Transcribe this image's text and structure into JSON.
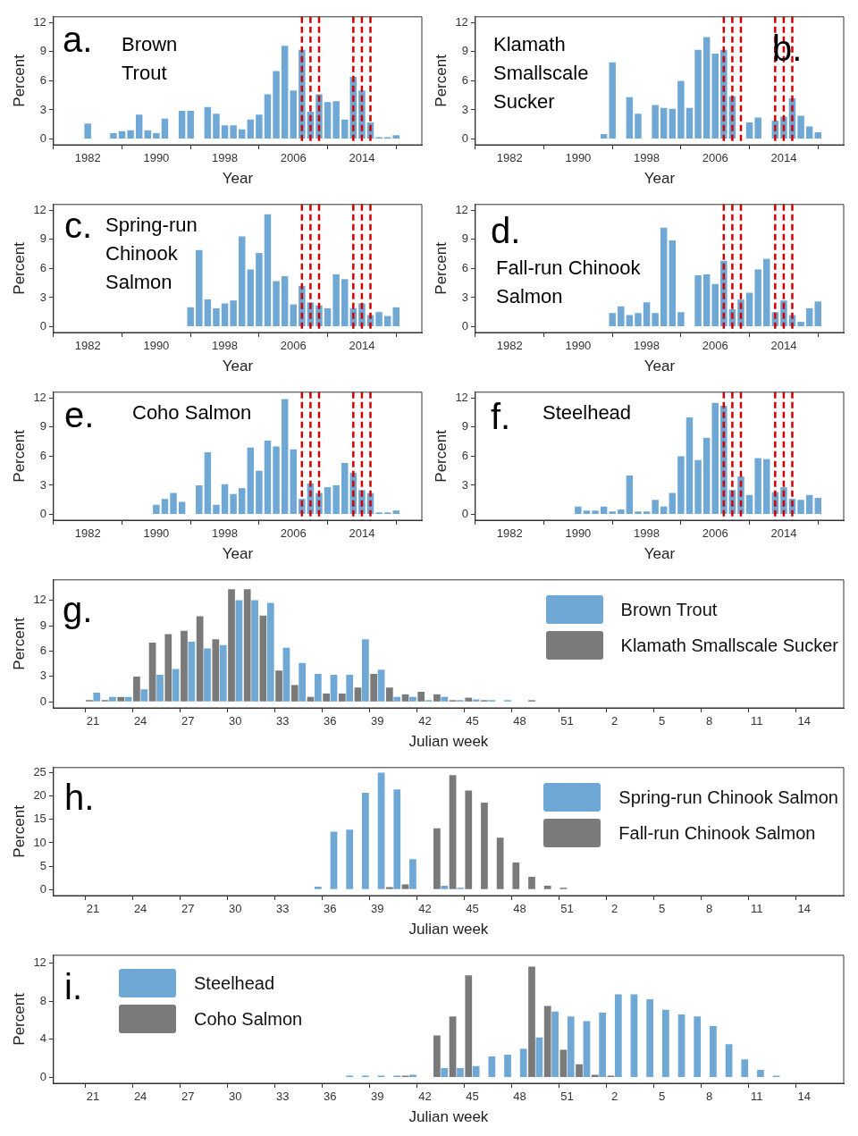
{
  "chart_data": [
    {
      "type": "bar",
      "title": "a.",
      "subtitle": "Brown Trout",
      "xlabel": "Year",
      "ylabel": "Percent",
      "color": "#6fa8d4",
      "x": [
        1982,
        1985,
        1986,
        1987,
        1988,
        1989,
        1990,
        1991,
        1993,
        1994,
        1996,
        1997,
        1998,
        1999,
        2000,
        2001,
        2002,
        2003,
        2004,
        2005,
        2006,
        2007,
        2008,
        2009,
        2010,
        2011,
        2012,
        2013,
        2014,
        2015,
        2016,
        2017,
        2018
      ],
      "values": [
        1.6,
        0.6,
        0.8,
        0.9,
        2.5,
        0.9,
        0.6,
        2.1,
        2.9,
        2.9,
        3.3,
        2.6,
        1.4,
        1.4,
        1.0,
        2.0,
        2.5,
        4.6,
        7.0,
        9.6,
        5.0,
        9.2,
        2.8,
        4.6,
        3.8,
        3.9,
        2.0,
        6.4,
        5.0,
        1.7,
        0.1,
        0.1,
        0.4
      ],
      "xlim": [
        1978,
        2021
      ],
      "xticks": [
        1982,
        1990,
        1998,
        2006,
        2014
      ],
      "ylim": [
        -0.6,
        12.6
      ],
      "yticks": [
        0,
        3,
        6,
        9,
        12
      ],
      "ref_lines": [
        {
          "axis": "x",
          "value": 2007,
          "color": "#d00000",
          "line_style": "dashed"
        },
        {
          "axis": "x",
          "value": 2008,
          "color": "#d00000",
          "line_style": "dashed"
        },
        {
          "axis": "x",
          "value": 2009,
          "color": "#d00000",
          "line_style": "dashed"
        },
        {
          "axis": "x",
          "value": 2013,
          "color": "#d00000",
          "line_style": "dashed"
        },
        {
          "axis": "x",
          "value": 2014,
          "color": "#d00000",
          "line_style": "dashed"
        },
        {
          "axis": "x",
          "value": 2015,
          "color": "#d00000",
          "line_style": "dashed"
        }
      ]
    },
    {
      "type": "bar",
      "title": "b.",
      "subtitle": "Klamath Smallscale Sucker",
      "xlabel": "Year",
      "ylabel": "Percent",
      "color": "#6fa8d4",
      "x": [
        1993,
        1994,
        1996,
        1997,
        1999,
        2000,
        2001,
        2002,
        2003,
        2004,
        2005,
        2006,
        2007,
        2008,
        2010,
        2011,
        2013,
        2014,
        2015,
        2016,
        2017,
        2018
      ],
      "values": [
        0.5,
        7.9,
        4.3,
        2.6,
        3.5,
        3.2,
        3.1,
        6.0,
        3.2,
        9.2,
        10.5,
        8.8,
        9.2,
        4.4,
        1.7,
        2.2,
        1.9,
        2.3,
        4.2,
        2.4,
        1.3,
        0.7
      ],
      "xlim": [
        1978,
        2021
      ],
      "xticks": [
        1982,
        1990,
        1998,
        2006,
        2014
      ],
      "ylim": [
        -0.6,
        12.6
      ],
      "yticks": [
        0,
        3,
        6,
        9,
        12
      ],
      "ref_lines": [
        {
          "axis": "x",
          "value": 2007,
          "color": "#d00000",
          "line_style": "dashed"
        },
        {
          "axis": "x",
          "value": 2008,
          "color": "#d00000",
          "line_style": "dashed"
        },
        {
          "axis": "x",
          "value": 2009,
          "color": "#d00000",
          "line_style": "dashed"
        },
        {
          "axis": "x",
          "value": 2013,
          "color": "#d00000",
          "line_style": "dashed"
        },
        {
          "axis": "x",
          "value": 2014,
          "color": "#d00000",
          "line_style": "dashed"
        },
        {
          "axis": "x",
          "value": 2015,
          "color": "#d00000",
          "line_style": "dashed"
        }
      ]
    },
    {
      "type": "bar",
      "title": "c.",
      "subtitle": "Spring-run Chinook Salmon",
      "xlabel": "Year",
      "ylabel": "Percent",
      "color": "#6fa8d4",
      "x": [
        1994,
        1995,
        1996,
        1997,
        1998,
        1999,
        2000,
        2001,
        2002,
        2003,
        2004,
        2005,
        2006,
        2007,
        2008,
        2009,
        2010,
        2011,
        2012,
        2013,
        2014,
        2015,
        2016,
        2017,
        2018
      ],
      "values": [
        2.0,
        7.9,
        2.8,
        1.9,
        2.4,
        2.7,
        9.3,
        5.9,
        7.6,
        11.6,
        4.7,
        5.2,
        2.3,
        4.2,
        2.5,
        2.2,
        1.9,
        5.4,
        4.9,
        1.9,
        2.4,
        1.2,
        1.5,
        1.1,
        2.0
      ],
      "xlim": [
        1978,
        2021
      ],
      "xticks": [
        1982,
        1990,
        1998,
        2006,
        2014
      ],
      "ylim": [
        -0.6,
        12.6
      ],
      "yticks": [
        0,
        3,
        6,
        9,
        12
      ],
      "ref_lines": [
        {
          "axis": "x",
          "value": 2007,
          "color": "#d00000",
          "line_style": "dashed"
        },
        {
          "axis": "x",
          "value": 2008,
          "color": "#d00000",
          "line_style": "dashed"
        },
        {
          "axis": "x",
          "value": 2009,
          "color": "#d00000",
          "line_style": "dashed"
        },
        {
          "axis": "x",
          "value": 2013,
          "color": "#d00000",
          "line_style": "dashed"
        },
        {
          "axis": "x",
          "value": 2014,
          "color": "#d00000",
          "line_style": "dashed"
        },
        {
          "axis": "x",
          "value": 2015,
          "color": "#d00000",
          "line_style": "dashed"
        }
      ]
    },
    {
      "type": "bar",
      "title": "d.",
      "subtitle": "Fall-run Chinook Salmon",
      "xlabel": "Year",
      "ylabel": "Percent",
      "color": "#6fa8d4",
      "x": [
        1994,
        1995,
        1996,
        1997,
        1998,
        1999,
        2000,
        2001,
        2002,
        2004,
        2005,
        2006,
        2007,
        2008,
        2009,
        2010,
        2011,
        2012,
        2013,
        2014,
        2015,
        2016,
        2017,
        2018
      ],
      "values": [
        1.4,
        2.1,
        1.2,
        1.4,
        2.5,
        1.4,
        10.2,
        8.9,
        1.5,
        5.3,
        5.4,
        4.4,
        6.8,
        1.8,
        2.8,
        3.5,
        5.9,
        7.0,
        1.5,
        2.7,
        1.2,
        0.5,
        1.9,
        2.6
      ],
      "xlim": [
        1978,
        2021
      ],
      "xticks": [
        1982,
        1990,
        1998,
        2006,
        2014
      ],
      "ylim": [
        -0.6,
        12.6
      ],
      "yticks": [
        0,
        3,
        6,
        9,
        12
      ],
      "ref_lines": [
        {
          "axis": "x",
          "value": 2007,
          "color": "#d00000",
          "line_style": "dashed"
        },
        {
          "axis": "x",
          "value": 2008,
          "color": "#d00000",
          "line_style": "dashed"
        },
        {
          "axis": "x",
          "value": 2009,
          "color": "#d00000",
          "line_style": "dashed"
        },
        {
          "axis": "x",
          "value": 2013,
          "color": "#d00000",
          "line_style": "dashed"
        },
        {
          "axis": "x",
          "value": 2014,
          "color": "#d00000",
          "line_style": "dashed"
        },
        {
          "axis": "x",
          "value": 2015,
          "color": "#d00000",
          "line_style": "dashed"
        }
      ]
    },
    {
      "type": "bar",
      "title": "e.",
      "subtitle": "Coho Salmon",
      "xlabel": "Year",
      "ylabel": "Percent",
      "color": "#6fa8d4",
      "x": [
        1990,
        1991,
        1992,
        1993,
        1995,
        1996,
        1997,
        1998,
        1999,
        2000,
        2001,
        2002,
        2003,
        2004,
        2005,
        2006,
        2007,
        2008,
        2009,
        2010,
        2011,
        2012,
        2013,
        2014,
        2015,
        2016,
        2017,
        2018
      ],
      "values": [
        1.0,
        1.6,
        2.2,
        1.3,
        3.0,
        6.4,
        1.0,
        3.1,
        2.1,
        2.7,
        6.9,
        4.5,
        7.6,
        7.0,
        11.9,
        6.7,
        1.6,
        3.2,
        2.2,
        2.8,
        3.0,
        5.3,
        4.3,
        2.5,
        2.2,
        0.2,
        0.2,
        0.4
      ],
      "xlim": [
        1978,
        2021
      ],
      "xticks": [
        1982,
        1990,
        1998,
        2006,
        2014
      ],
      "ylim": [
        -0.6,
        12.6
      ],
      "yticks": [
        0,
        3,
        6,
        9,
        12
      ],
      "ref_lines": [
        {
          "axis": "x",
          "value": 2007,
          "color": "#d00000",
          "line_style": "dashed"
        },
        {
          "axis": "x",
          "value": 2008,
          "color": "#d00000",
          "line_style": "dashed"
        },
        {
          "axis": "x",
          "value": 2009,
          "color": "#d00000",
          "line_style": "dashed"
        },
        {
          "axis": "x",
          "value": 2013,
          "color": "#d00000",
          "line_style": "dashed"
        },
        {
          "axis": "x",
          "value": 2014,
          "color": "#d00000",
          "line_style": "dashed"
        },
        {
          "axis": "x",
          "value": 2015,
          "color": "#d00000",
          "line_style": "dashed"
        }
      ]
    },
    {
      "type": "bar",
      "title": "f.",
      "subtitle": "Steelhead",
      "xlabel": "Year",
      "ylabel": "Percent",
      "color": "#6fa8d4",
      "x": [
        1990,
        1991,
        1992,
        1993,
        1994,
        1995,
        1996,
        1997,
        1998,
        1999,
        2000,
        2001,
        2002,
        2003,
        2004,
        2005,
        2006,
        2007,
        2008,
        2009,
        2010,
        2011,
        2012,
        2013,
        2014,
        2015,
        2016,
        2017,
        2018
      ],
      "values": [
        0.8,
        0.4,
        0.4,
        0.8,
        0.3,
        0.5,
        4.0,
        0.3,
        0.3,
        1.5,
        0.8,
        2.2,
        6.0,
        10.0,
        5.6,
        7.9,
        11.5,
        11.2,
        2.5,
        3.9,
        2.0,
        5.8,
        5.7,
        2.3,
        2.8,
        1.6,
        1.5,
        2.0,
        1.7
      ],
      "xlim": [
        1978,
        2021
      ],
      "xticks": [
        1982,
        1990,
        1998,
        2006,
        2014
      ],
      "ylim": [
        -0.6,
        12.6
      ],
      "yticks": [
        0,
        3,
        6,
        9,
        12
      ],
      "ref_lines": [
        {
          "axis": "x",
          "value": 2007,
          "color": "#d00000",
          "line_style": "dashed"
        },
        {
          "axis": "x",
          "value": 2008,
          "color": "#d00000",
          "line_style": "dashed"
        },
        {
          "axis": "x",
          "value": 2009,
          "color": "#d00000",
          "line_style": "dashed"
        },
        {
          "axis": "x",
          "value": 2013,
          "color": "#d00000",
          "line_style": "dashed"
        },
        {
          "axis": "x",
          "value": 2014,
          "color": "#d00000",
          "line_style": "dashed"
        },
        {
          "axis": "x",
          "value": 2015,
          "color": "#d00000",
          "line_style": "dashed"
        }
      ]
    },
    {
      "type": "bar",
      "title": "g.",
      "xlabel": "Julian week",
      "ylabel": "Percent",
      "legend": "top right",
      "ylim": [
        -0.7,
        14.4
      ],
      "yticks": [
        0,
        3,
        6,
        9,
        12
      ],
      "categories": [
        null,
        null,
        "21",
        null,
        null,
        "24",
        null,
        null,
        "27",
        null,
        null,
        "30",
        null,
        null,
        "33",
        null,
        null,
        "36",
        null,
        null,
        "39",
        null,
        null,
        "42",
        null,
        null,
        "45",
        null,
        null,
        "48",
        null,
        null,
        "51",
        null,
        null,
        "2",
        null,
        null,
        "5",
        null,
        null,
        "8",
        null,
        null,
        "11",
        null,
        null,
        "14",
        null,
        null
      ],
      "series": [
        {
          "name": "Brown Trout",
          "color": "#6fa8d4",
          "values": [
            null,
            null,
            1.1,
            0.6,
            0.6,
            1.5,
            3.2,
            3.9,
            7.1,
            6.3,
            6.7,
            12.0,
            12.0,
            11.7,
            6.4,
            4.6,
            3.3,
            3.2,
            3.2,
            7.4,
            3.8,
            0.6,
            0.6,
            0.2,
            0.6,
            0.1,
            0.3,
            0.1,
            0.1,
            null,
            null,
            null,
            null,
            null,
            null,
            null,
            null,
            null,
            null,
            null,
            null,
            null,
            null,
            null,
            null,
            null,
            null,
            null,
            null,
            null
          ]
        },
        {
          "name": "Klamath Smallscale Sucker",
          "color": "#7a7a7a",
          "values": [
            null,
            null,
            0.1,
            0.1,
            0.6,
            3.0,
            7.0,
            8.0,
            8.4,
            10.1,
            7.4,
            13.3,
            13.3,
            10.2,
            3.7,
            2.0,
            0.6,
            1.0,
            1.0,
            1.7,
            3.3,
            1.7,
            0.9,
            1.2,
            0.9,
            0.1,
            0.5,
            0.1,
            null,
            null,
            0.1,
            null,
            null,
            null,
            null,
            null,
            null,
            null,
            null,
            null,
            null,
            null,
            null,
            null,
            null,
            null,
            null,
            null,
            null,
            null
          ]
        }
      ]
    },
    {
      "type": "bar",
      "title": "h.",
      "xlabel": "Julian week",
      "ylabel": "Percent",
      "legend": "top right",
      "ylim": [
        -1.3,
        26.1
      ],
      "yticks": [
        0,
        5,
        10,
        15,
        20,
        25
      ],
      "categories": [
        null,
        null,
        "21",
        null,
        null,
        "24",
        null,
        null,
        "27",
        null,
        null,
        "30",
        null,
        null,
        "33",
        null,
        null,
        "36",
        null,
        null,
        "39",
        null,
        null,
        "42",
        null,
        null,
        "45",
        null,
        null,
        "48",
        null,
        null,
        "51",
        null,
        null,
        "2",
        null,
        null,
        "5",
        null,
        null,
        "8",
        null,
        null,
        "11",
        null,
        null,
        "14",
        null,
        null
      ],
      "series": [
        {
          "name": "Spring-run Chinook Salmon",
          "color": "#6fa8d4",
          "values": [
            null,
            null,
            null,
            null,
            null,
            null,
            null,
            null,
            null,
            null,
            null,
            null,
            null,
            null,
            null,
            null,
            0.6,
            12.4,
            12.8,
            20.7,
            25.0,
            21.4,
            6.5,
            null,
            0.8,
            0.2,
            null,
            null,
            null,
            null,
            null,
            null,
            null,
            null,
            null,
            null,
            null,
            null,
            null,
            null,
            null,
            null,
            null,
            null,
            null,
            null,
            null,
            null,
            null,
            null
          ]
        },
        {
          "name": "Fall-run Chinook Salmon",
          "color": "#7a7a7a",
          "values": [
            null,
            null,
            null,
            null,
            null,
            null,
            null,
            null,
            null,
            null,
            null,
            null,
            null,
            null,
            null,
            null,
            null,
            null,
            null,
            null,
            null,
            0.5,
            1.1,
            null,
            13.1,
            24.5,
            21.2,
            18.6,
            11.1,
            5.8,
            2.7,
            0.8,
            0.3,
            null,
            null,
            null,
            null,
            null,
            null,
            null,
            null,
            null,
            null,
            null,
            null,
            null,
            null,
            null,
            null,
            null
          ]
        }
      ]
    },
    {
      "type": "bar",
      "title": "i.",
      "xlabel": "Julian week",
      "ylabel": "Percent",
      "legend": "top left",
      "ylim": [
        -0.6,
        12.8
      ],
      "yticks": [
        0,
        4,
        8,
        12
      ],
      "categories": [
        null,
        null,
        "21",
        null,
        null,
        "24",
        null,
        null,
        "27",
        null,
        null,
        "30",
        null,
        null,
        "33",
        null,
        null,
        "36",
        null,
        null,
        "39",
        null,
        null,
        "42",
        null,
        null,
        "45",
        null,
        null,
        "48",
        null,
        null,
        "51",
        null,
        null,
        "2",
        null,
        null,
        "5",
        null,
        null,
        "8",
        null,
        null,
        "11",
        null,
        null,
        "14",
        null,
        null
      ],
      "series": [
        {
          "name": "Steelhead",
          "color": "#6fa8d4",
          "values": [
            null,
            null,
            null,
            null,
            null,
            null,
            null,
            null,
            null,
            null,
            null,
            null,
            null,
            null,
            null,
            null,
            null,
            null,
            0.1,
            0.1,
            0.1,
            0.2,
            0.3,
            null,
            1.0,
            1.0,
            1.2,
            2.2,
            2.4,
            3.0,
            4.2,
            6.9,
            6.4,
            5.9,
            6.8,
            8.7,
            8.7,
            8.2,
            7.1,
            6.6,
            6.4,
            5.4,
            3.5,
            1.9,
            0.8,
            0.1,
            null,
            null,
            null,
            null
          ]
        },
        {
          "name": "Coho Salmon",
          "color": "#7a7a7a",
          "values": [
            null,
            null,
            null,
            null,
            null,
            null,
            null,
            null,
            null,
            null,
            null,
            null,
            null,
            null,
            null,
            null,
            null,
            null,
            null,
            null,
            null,
            null,
            0.2,
            null,
            4.4,
            6.4,
            10.7,
            null,
            null,
            null,
            11.6,
            7.5,
            2.9,
            1.4,
            0.3,
            0.1,
            null,
            null,
            null,
            null,
            null,
            null,
            null,
            null,
            null,
            null,
            null,
            null,
            null,
            null
          ]
        }
      ]
    }
  ]
}
